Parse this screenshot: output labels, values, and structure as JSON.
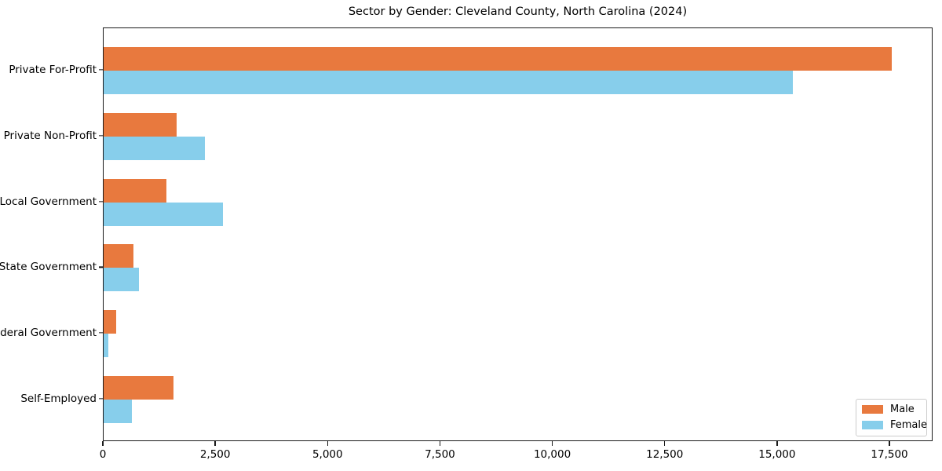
{
  "title": "Sector by Gender: Cleveland County, North Carolina (2024)",
  "chart_data": {
    "type": "bar",
    "orientation": "horizontal",
    "title": "Sector by Gender: Cleveland County, North Carolina (2024)",
    "categories": [
      "Private For-Profit",
      "Private Non-Profit",
      "Local Government",
      "State Government",
      "Federal Government",
      "Self-Employed"
    ],
    "series": [
      {
        "name": "Male",
        "color": "#e8793e",
        "values": [
          17540,
          1630,
          1390,
          670,
          270,
          1560
        ]
      },
      {
        "name": "Female",
        "color": "#87ceeb",
        "values": [
          15340,
          2260,
          2650,
          780,
          110,
          620
        ]
      }
    ],
    "xlabel": "",
    "ylabel": "",
    "xlim": [
      0,
      18460
    ],
    "x_ticks": [
      0,
      2500,
      5000,
      7500,
      10000,
      12500,
      15000,
      17500
    ],
    "x_tick_labels": [
      "0",
      "2,500",
      "5,000",
      "7,500",
      "10,000",
      "12,500",
      "15,000",
      "17,500"
    ],
    "grid": false,
    "legend": {
      "position": "lower right",
      "entries": [
        "Male",
        "Female"
      ]
    }
  }
}
